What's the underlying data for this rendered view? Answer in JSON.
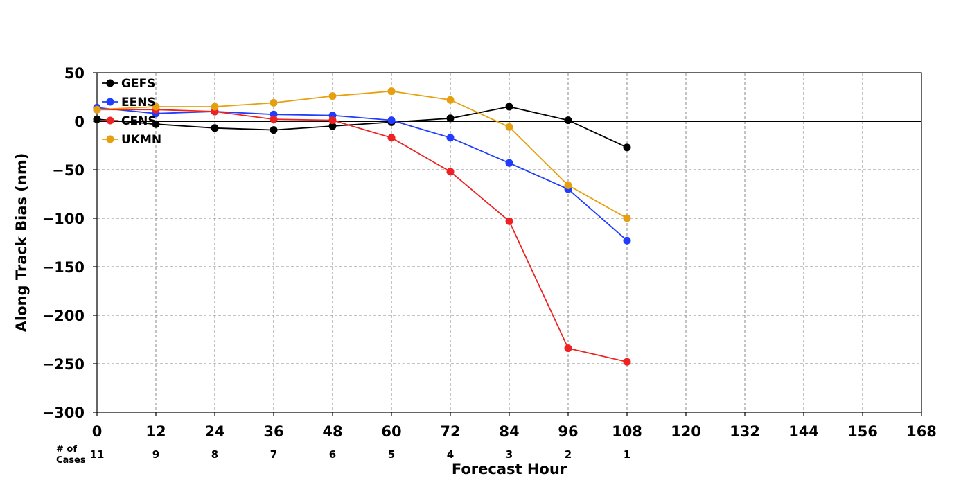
{
  "chart_data": {
    "type": "line",
    "title": "",
    "xlabel": "Forecast Hour",
    "ylabel": "Along Track Bias (nm)",
    "x": [
      0,
      12,
      24,
      36,
      48,
      60,
      72,
      84,
      96,
      108
    ],
    "xticks": [
      0,
      12,
      24,
      36,
      48,
      60,
      72,
      84,
      96,
      108,
      120,
      132,
      144,
      156,
      168
    ],
    "xtick_labels": [
      "0",
      "12",
      "24",
      "36",
      "48",
      "60",
      "72",
      "84",
      "96",
      "108",
      "120",
      "132",
      "144",
      "156",
      "168"
    ],
    "yticks": [
      50,
      0,
      -50,
      -100,
      -150,
      -200,
      -250,
      -300
    ],
    "ytick_labels": [
      "50",
      "0",
      "−50",
      "−100",
      "−150",
      "−200",
      "−250",
      "−300"
    ],
    "xlim": [
      0,
      168
    ],
    "ylim": [
      -300,
      50
    ],
    "grid": true,
    "legend_position": "top-left",
    "series": [
      {
        "name": "GEFS",
        "color": "#000000",
        "values": [
          2,
          -3,
          -7,
          -9,
          -5,
          -1,
          3,
          15,
          1,
          -27
        ]
      },
      {
        "name": "EENS",
        "color": "#1f3cff",
        "values": [
          14,
          8,
          10,
          7,
          6,
          1,
          -17,
          -43,
          -70,
          -123
        ]
      },
      {
        "name": "CENS",
        "color": "#ee2222",
        "values": [
          12,
          12,
          10,
          2,
          1,
          -17,
          -52,
          -103,
          -234,
          -248
        ]
      },
      {
        "name": "UKMN",
        "color": "#e6a00f",
        "values": [
          12,
          15,
          15,
          19,
          26,
          31,
          22,
          -6,
          -66,
          -100
        ]
      }
    ],
    "cases_label_line1": "# of",
    "cases_label_line2": "Cases",
    "cases": [
      "11",
      "9",
      "8",
      "7",
      "6",
      "5",
      "4",
      "3",
      "2",
      "1"
    ]
  }
}
